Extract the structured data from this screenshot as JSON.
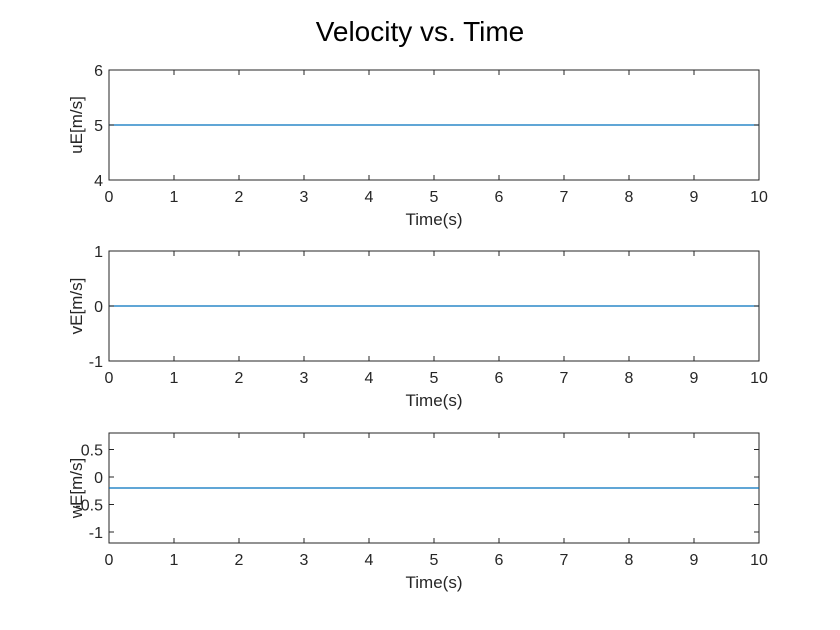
{
  "figure": {
    "title": "Velocity vs. Time"
  },
  "chart_data": [
    {
      "type": "line",
      "title": "",
      "xlabel": "Time(s)",
      "ylabel": "uE[m/s]",
      "xlim": [
        0,
        10
      ],
      "ylim": [
        4,
        6
      ],
      "xticks": [
        0,
        1,
        2,
        3,
        4,
        5,
        6,
        7,
        8,
        9,
        10
      ],
      "yticks": [
        4,
        5,
        6
      ],
      "ytick_labels": [
        "4",
        "5",
        "6"
      ],
      "grid": false,
      "series": [
        {
          "name": "",
          "color": "#0072bd",
          "x": [
            0,
            10
          ],
          "y": [
            5,
            5
          ]
        }
      ]
    },
    {
      "type": "line",
      "title": "",
      "xlabel": "Time(s)",
      "ylabel": "vE[m/s]",
      "xlim": [
        0,
        10
      ],
      "ylim": [
        -1,
        1
      ],
      "xticks": [
        0,
        1,
        2,
        3,
        4,
        5,
        6,
        7,
        8,
        9,
        10
      ],
      "yticks": [
        -1,
        0,
        1
      ],
      "ytick_labels": [
        "-1",
        "0",
        "1"
      ],
      "grid": false,
      "series": [
        {
          "name": "",
          "color": "#0072bd",
          "x": [
            0,
            10
          ],
          "y": [
            0,
            0
          ]
        }
      ]
    },
    {
      "type": "line",
      "title": "",
      "xlabel": "Time(s)",
      "ylabel": "wE[m/s]",
      "xlim": [
        0,
        10
      ],
      "ylim": [
        -1.2,
        0.8
      ],
      "xticks": [
        0,
        1,
        2,
        3,
        4,
        5,
        6,
        7,
        8,
        9,
        10
      ],
      "yticks": [
        -1,
        -0.5,
        0,
        0.5
      ],
      "ytick_labels": [
        "-1",
        "-0.5",
        "0",
        "0.5"
      ],
      "grid": false,
      "series": [
        {
          "name": "",
          "color": "#0072bd",
          "x": [
            0,
            10
          ],
          "y": [
            -0.2,
            -0.2
          ]
        }
      ]
    }
  ]
}
